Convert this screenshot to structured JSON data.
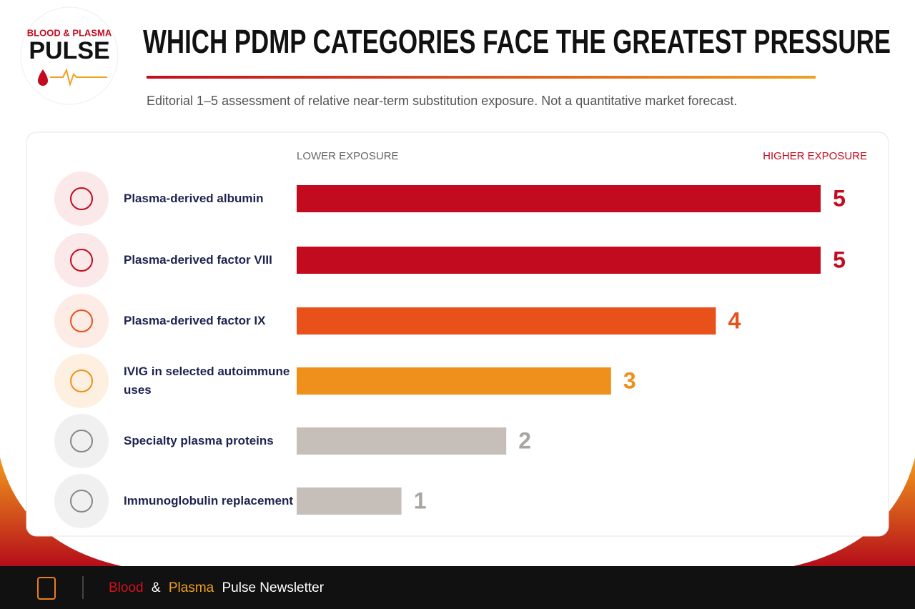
{
  "logo": {
    "top": "BLOOD & PLASMA",
    "main": "PULSE"
  },
  "chart_data": {
    "type": "bar",
    "orientation": "horizontal",
    "title": "WHICH PDMP CATEGORIES FACE THE GREATEST PRESSURE",
    "subtitle": "Editorial 1–5 assessment of relative near-term substitution exposure. Not a quantitative market forecast.",
    "x_label_low": "LOWER EXPOSURE",
    "x_label_high": "HIGHER EXPOSURE",
    "categories": [
      "Plasma-derived albumin",
      "Plasma-derived factor VIII",
      "Plasma-derived factor IX",
      "IVIG in selected autoimmune uses",
      "Specialty plasma proteins",
      "Immunoglobulin replacement"
    ],
    "values": [
      5,
      5,
      4,
      3,
      2,
      1
    ],
    "colors": [
      "#c30b1f",
      "#c30b1f",
      "#e8511a",
      "#ef8f1c",
      "#c5beb9",
      "#c5beb9"
    ],
    "xlim": [
      0,
      5
    ]
  },
  "footer": {
    "parts": [
      "Blood",
      "&",
      "Plasma",
      "Pulse Newsletter"
    ]
  }
}
